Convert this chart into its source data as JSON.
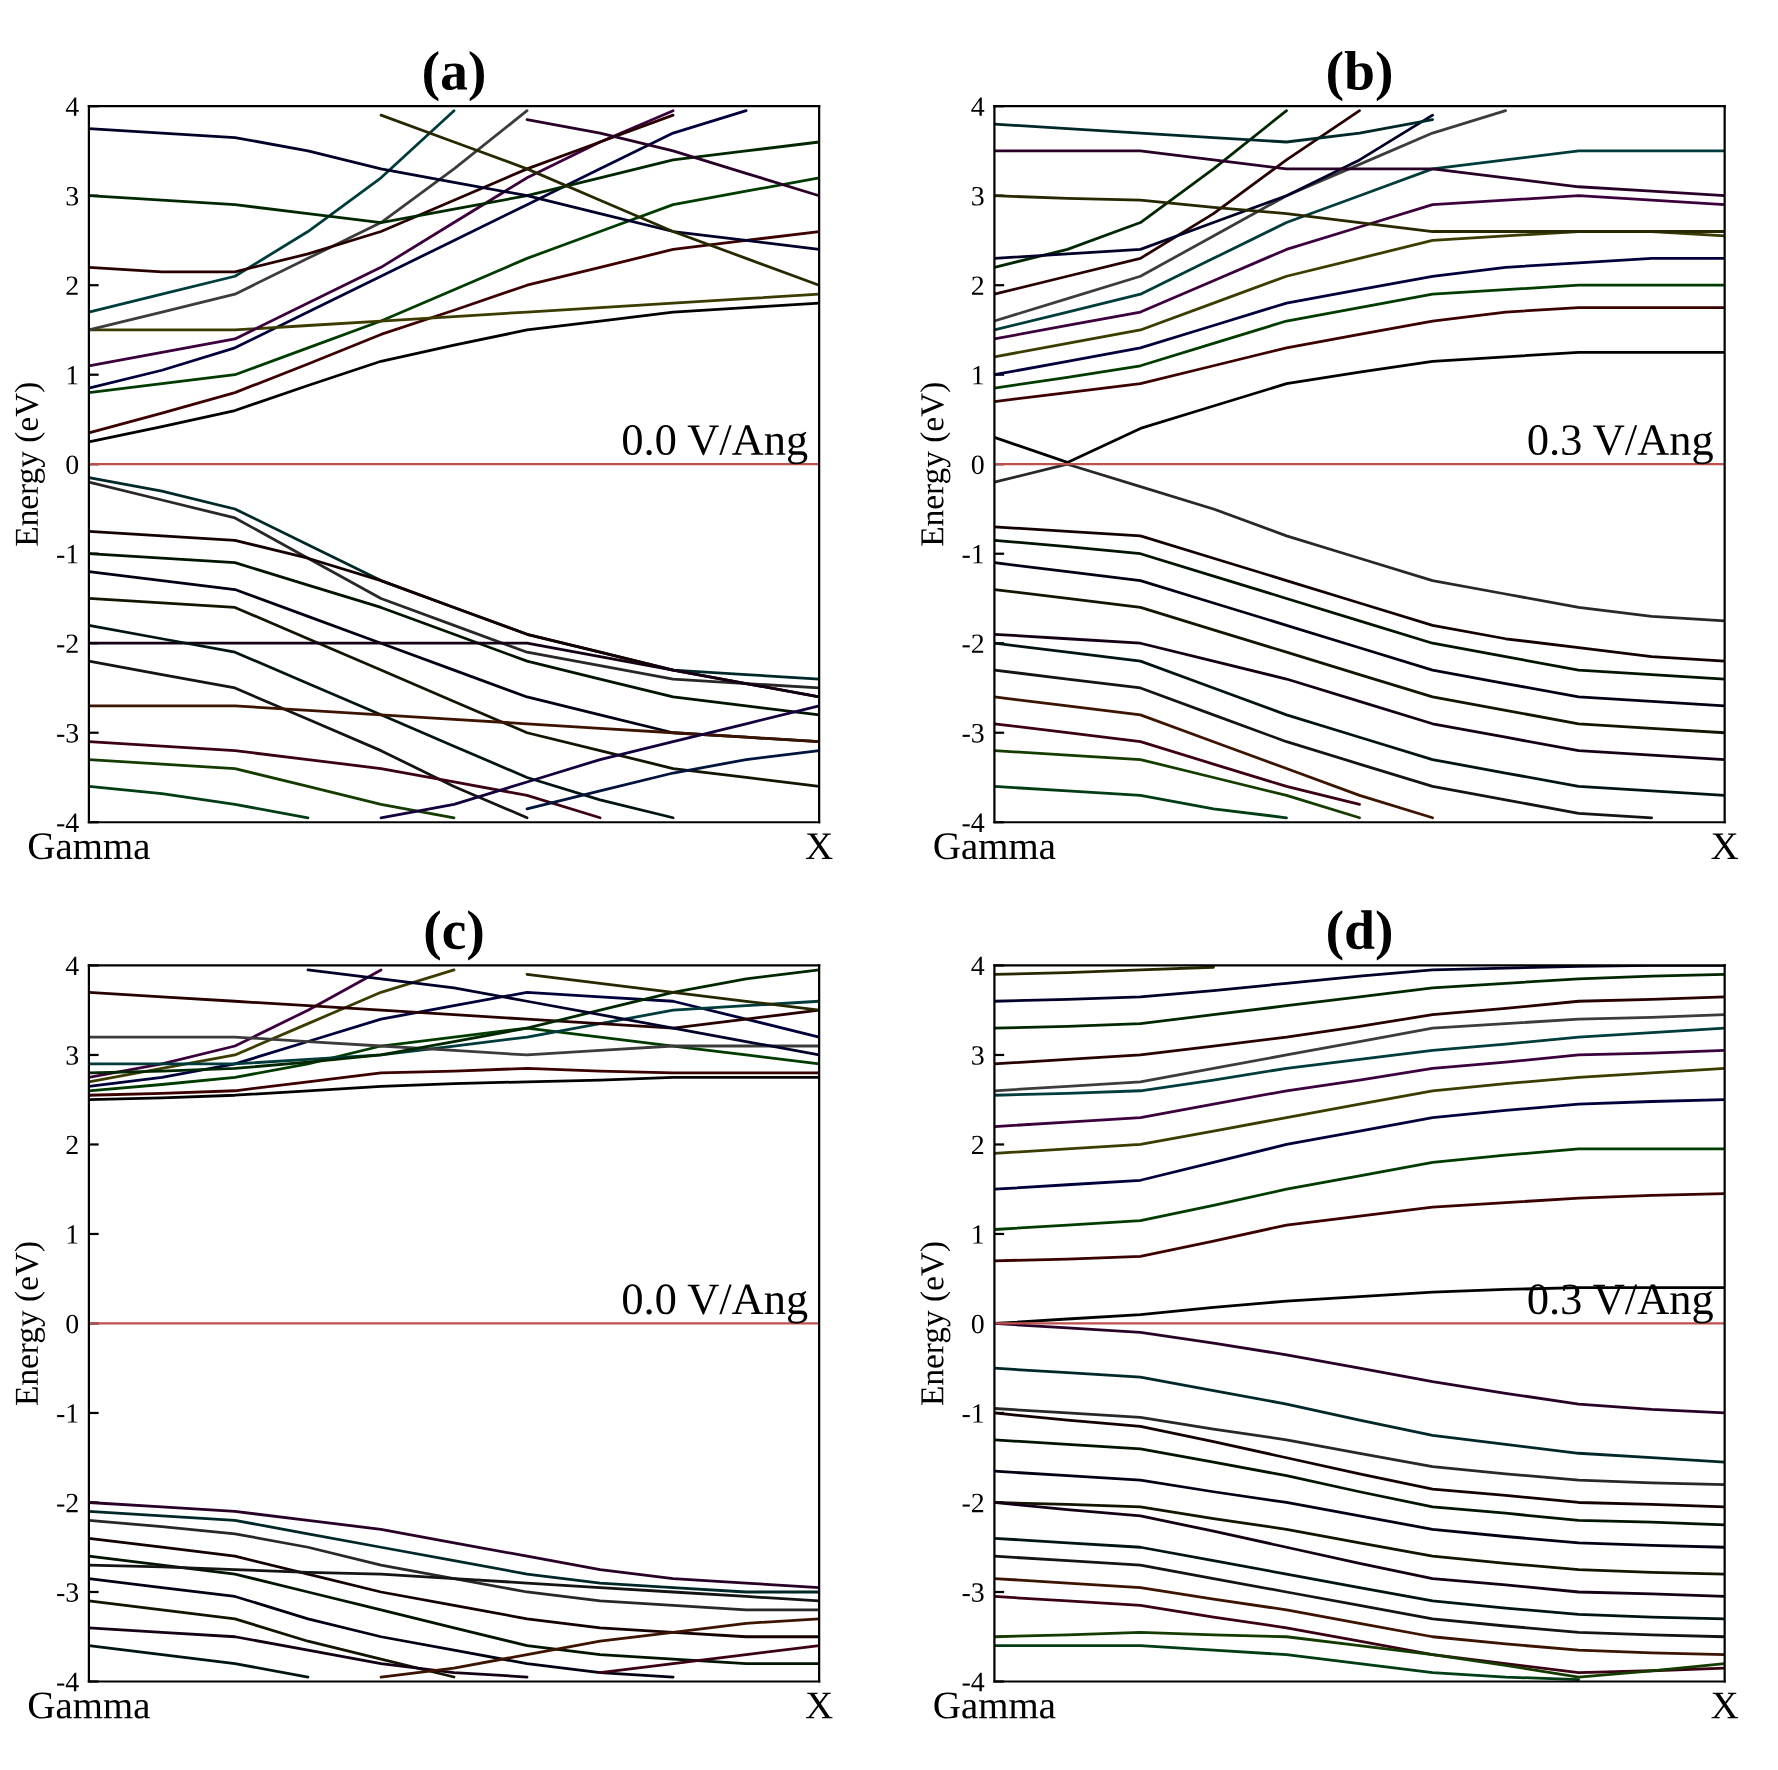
{
  "chart_data": [
    {
      "type": "line",
      "title": "(a)",
      "ylabel": "Energy (eV)",
      "ylim": [
        -4,
        4
      ],
      "yticks": [
        -4,
        -3,
        -2,
        -1,
        0,
        1,
        2,
        3,
        4
      ],
      "grid": false,
      "line_style": "solid",
      "categories": [
        "Gamma",
        null,
        null,
        null,
        null,
        null,
        null,
        null,
        null,
        null,
        "X"
      ],
      "ref_lines": [
        {
          "axis": "y",
          "value": 0,
          "label": "0.0 V/Ang",
          "color": "#c0504d"
        }
      ],
      "series": [
        {
          "color": "#000000",
          "values": [
            0.25,
            0.42,
            0.6,
            0.88,
            1.15,
            1.33,
            1.5,
            1.6,
            1.7,
            1.75,
            1.8
          ]
        },
        {
          "color": "#3c0000",
          "values": [
            0.35,
            0.57,
            0.8,
            1.12,
            1.45,
            1.72,
            2.0,
            2.2,
            2.4,
            2.5,
            2.6
          ]
        },
        {
          "color": "#003c00",
          "values": [
            0.8,
            0.9,
            1.0,
            1.3,
            1.6,
            1.95,
            2.3,
            2.6,
            2.9,
            3.05,
            3.2
          ]
        },
        {
          "color": "#00003c",
          "values": [
            0.85,
            1.05,
            1.3,
            1.7,
            2.1,
            2.5,
            2.9,
            3.3,
            3.7,
            3.95,
            null
          ]
        },
        {
          "color": "#3c3c00",
          "values": [
            1.5,
            1.5,
            1.5,
            1.55,
            1.6,
            1.65,
            1.7,
            1.75,
            1.8,
            1.85,
            1.9
          ]
        },
        {
          "color": "#3c003c",
          "values": [
            1.1,
            1.25,
            1.4,
            1.8,
            2.2,
            2.7,
            3.2,
            3.6,
            3.95,
            null,
            null
          ]
        },
        {
          "color": "#003c3c",
          "values": [
            1.7,
            1.9,
            2.1,
            2.6,
            3.2,
            3.95,
            null,
            null,
            null,
            null,
            null
          ]
        },
        {
          "color": "#3c3c3c",
          "values": [
            1.5,
            1.7,
            1.9,
            2.3,
            2.7,
            3.3,
            3.95,
            null,
            null,
            null,
            null
          ]
        },
        {
          "color": "#280000",
          "values": [
            2.2,
            2.15,
            2.15,
            2.35,
            2.6,
            2.95,
            3.3,
            3.6,
            3.9,
            null,
            null
          ]
        },
        {
          "color": "#002800",
          "values": [
            3.0,
            2.95,
            2.9,
            2.8,
            2.7,
            2.85,
            3.0,
            3.2,
            3.4,
            3.5,
            3.6
          ]
        },
        {
          "color": "#000028",
          "values": [
            3.75,
            3.7,
            3.65,
            3.5,
            3.3,
            3.15,
            3.0,
            2.8,
            2.6,
            2.5,
            2.4
          ]
        },
        {
          "color": "#282800",
          "values": [
            null,
            null,
            null,
            null,
            3.9,
            3.6,
            3.3,
            2.95,
            2.6,
            2.3,
            2.0
          ]
        },
        {
          "color": "#280028",
          "values": [
            null,
            null,
            null,
            null,
            null,
            null,
            3.85,
            3.7,
            3.5,
            3.25,
            3.0
          ]
        },
        {
          "color": "#002828",
          "values": [
            -0.15,
            -0.3,
            -0.5,
            -0.9,
            -1.3,
            -1.6,
            -1.9,
            -2.1,
            -2.3,
            -2.35,
            -2.4
          ]
        },
        {
          "color": "#282828",
          "values": [
            -0.2,
            -0.4,
            -0.6,
            -1.05,
            -1.5,
            -1.8,
            -2.1,
            -2.25,
            -2.4,
            -2.45,
            -2.5
          ]
        },
        {
          "color": "#140000",
          "values": [
            -0.75,
            -0.8,
            -0.85,
            -1.05,
            -1.3,
            -1.6,
            -1.9,
            -2.1,
            -2.3,
            -2.45,
            -2.6
          ]
        },
        {
          "color": "#001400",
          "values": [
            -1.0,
            -1.05,
            -1.1,
            -1.35,
            -1.6,
            -1.9,
            -2.2,
            -2.4,
            -2.6,
            -2.7,
            -2.8
          ]
        },
        {
          "color": "#000014",
          "values": [
            -1.2,
            -1.3,
            -1.4,
            -1.7,
            -2.0,
            -2.3,
            -2.6,
            -2.8,
            -3.0,
            -3.05,
            -3.1
          ]
        },
        {
          "color": "#141400",
          "values": [
            -1.5,
            -1.55,
            -1.6,
            -1.95,
            -2.3,
            -2.65,
            -3.0,
            -3.2,
            -3.4,
            -3.5,
            -3.6
          ]
        },
        {
          "color": "#140014",
          "values": [
            -2.0,
            -2.0,
            -2.0,
            -2.0,
            -2.0,
            -2.0,
            -2.0,
            -2.15,
            -2.3,
            -2.45,
            -2.6
          ]
        },
        {
          "color": "#001414",
          "values": [
            -1.8,
            -1.95,
            -2.1,
            -2.45,
            -2.8,
            -3.15,
            -3.5,
            -3.75,
            -3.95,
            null,
            null
          ]
        },
        {
          "color": "#141414",
          "values": [
            -2.2,
            -2.35,
            -2.5,
            -2.85,
            -3.2,
            -3.6,
            -3.95,
            null,
            null,
            null,
            null
          ]
        },
        {
          "color": "#3c1400",
          "values": [
            -2.7,
            -2.7,
            -2.7,
            -2.75,
            -2.8,
            -2.85,
            -2.9,
            -2.95,
            -3.0,
            -3.05,
            -3.1
          ]
        },
        {
          "color": "#3c0014",
          "values": [
            -3.1,
            -3.15,
            -3.2,
            -3.3,
            -3.4,
            -3.55,
            -3.7,
            -3.95,
            null,
            null,
            null
          ]
        },
        {
          "color": "#143c00",
          "values": [
            -3.3,
            -3.35,
            -3.4,
            -3.6,
            -3.8,
            -3.95,
            null,
            null,
            null,
            null,
            null
          ]
        },
        {
          "color": "#003c14",
          "values": [
            -3.6,
            -3.68,
            -3.8,
            -3.95,
            null,
            null,
            null,
            null,
            null,
            null,
            null
          ]
        },
        {
          "color": "#14003c",
          "values": [
            null,
            null,
            null,
            null,
            -3.95,
            -3.8,
            -3.55,
            -3.3,
            -3.1,
            -2.9,
            -2.7
          ]
        },
        {
          "color": "#00143c",
          "values": [
            null,
            null,
            null,
            null,
            null,
            null,
            -3.85,
            -3.65,
            -3.45,
            -3.3,
            -3.2
          ]
        }
      ]
    },
    {
      "type": "line",
      "title": "(b)",
      "ylabel": "Energy (eV)",
      "ylim": [
        -4,
        4
      ],
      "yticks": [
        -4,
        -3,
        -2,
        -1,
        0,
        1,
        2,
        3,
        4
      ],
      "grid": false,
      "line_style": "solid",
      "categories": [
        "Gamma",
        null,
        null,
        null,
        null,
        null,
        null,
        null,
        null,
        null,
        "X"
      ],
      "ref_lines": [
        {
          "axis": "y",
          "value": 0,
          "label": "0.3 V/Ang",
          "color": "#c0504d"
        }
      ],
      "series": [
        {
          "color": "#000000",
          "values": [
            0.3,
            0.02,
            0.4,
            0.65,
            0.9,
            1.03,
            1.15,
            1.2,
            1.25,
            1.25,
            1.25
          ]
        },
        {
          "color": "#3c0000",
          "values": [
            0.7,
            0.8,
            0.9,
            1.1,
            1.3,
            1.45,
            1.6,
            1.7,
            1.75,
            1.75,
            1.75
          ]
        },
        {
          "color": "#003c00",
          "values": [
            0.85,
            0.97,
            1.1,
            1.35,
            1.6,
            1.75,
            1.9,
            1.95,
            2.0,
            2.0,
            2.0
          ]
        },
        {
          "color": "#00003c",
          "values": [
            1.0,
            1.15,
            1.3,
            1.55,
            1.8,
            1.95,
            2.1,
            2.2,
            2.25,
            2.3,
            2.3
          ]
        },
        {
          "color": "#3c3c00",
          "values": [
            1.2,
            1.35,
            1.5,
            1.8,
            2.1,
            2.3,
            2.5,
            2.55,
            2.6,
            2.6,
            2.55
          ]
        },
        {
          "color": "#3c003c",
          "values": [
            1.4,
            1.55,
            1.7,
            2.05,
            2.4,
            2.65,
            2.9,
            2.95,
            3.0,
            2.95,
            2.9
          ]
        },
        {
          "color": "#003c3c",
          "values": [
            1.5,
            1.7,
            1.9,
            2.3,
            2.7,
            3.0,
            3.3,
            3.4,
            3.5,
            3.5,
            3.5
          ]
        },
        {
          "color": "#3c3c3c",
          "values": [
            1.6,
            1.85,
            2.1,
            2.55,
            3.0,
            3.35,
            3.7,
            3.95,
            null,
            null,
            null
          ]
        },
        {
          "color": "#280000",
          "values": [
            1.9,
            2.1,
            2.3,
            2.8,
            3.4,
            3.95,
            null,
            null,
            null,
            null,
            null
          ]
        },
        {
          "color": "#002800",
          "values": [
            2.2,
            2.4,
            2.7,
            3.3,
            3.95,
            null,
            null,
            null,
            null,
            null,
            null
          ]
        },
        {
          "color": "#000028",
          "values": [
            2.3,
            2.35,
            2.4,
            2.7,
            3.0,
            3.4,
            3.9,
            null,
            null,
            null,
            null
          ]
        },
        {
          "color": "#282800",
          "values": [
            3.0,
            2.97,
            2.95,
            2.87,
            2.8,
            2.7,
            2.6,
            2.6,
            2.6,
            2.6,
            2.6
          ]
        },
        {
          "color": "#280028",
          "values": [
            3.5,
            3.5,
            3.5,
            3.4,
            3.3,
            3.3,
            3.3,
            3.2,
            3.1,
            3.05,
            3.0
          ]
        },
        {
          "color": "#002828",
          "values": [
            3.8,
            3.75,
            3.7,
            3.65,
            3.6,
            3.7,
            3.85,
            null,
            null,
            null,
            null
          ]
        },
        {
          "color": "#282828",
          "values": [
            -0.2,
            0.0,
            -0.25,
            -0.5,
            -0.8,
            -1.05,
            -1.3,
            -1.45,
            -1.6,
            -1.7,
            -1.75
          ]
        },
        {
          "color": "#140000",
          "values": [
            -0.7,
            -0.75,
            -0.8,
            -1.05,
            -1.3,
            -1.55,
            -1.8,
            -1.95,
            -2.05,
            -2.15,
            -2.2
          ]
        },
        {
          "color": "#001400",
          "values": [
            -0.85,
            -0.92,
            -1.0,
            -1.25,
            -1.5,
            -1.75,
            -2.0,
            -2.15,
            -2.3,
            -2.35,
            -2.4
          ]
        },
        {
          "color": "#000014",
          "values": [
            -1.1,
            -1.2,
            -1.3,
            -1.55,
            -1.8,
            -2.05,
            -2.3,
            -2.45,
            -2.6,
            -2.65,
            -2.7
          ]
        },
        {
          "color": "#141400",
          "values": [
            -1.4,
            -1.5,
            -1.6,
            -1.85,
            -2.1,
            -2.35,
            -2.6,
            -2.75,
            -2.9,
            -2.95,
            -3.0
          ]
        },
        {
          "color": "#140014",
          "values": [
            -1.9,
            -1.95,
            -2.0,
            -2.2,
            -2.4,
            -2.65,
            -2.9,
            -3.05,
            -3.2,
            -3.25,
            -3.3
          ]
        },
        {
          "color": "#001414",
          "values": [
            -2.0,
            -2.1,
            -2.2,
            -2.5,
            -2.8,
            -3.05,
            -3.3,
            -3.45,
            -3.6,
            -3.65,
            -3.7
          ]
        },
        {
          "color": "#141414",
          "values": [
            -2.3,
            -2.4,
            -2.5,
            -2.8,
            -3.1,
            -3.35,
            -3.6,
            -3.75,
            -3.9,
            -3.95,
            null
          ]
        },
        {
          "color": "#3c1400",
          "values": [
            -2.6,
            -2.7,
            -2.8,
            -3.1,
            -3.4,
            -3.7,
            -3.95,
            null,
            null,
            null,
            null
          ]
        },
        {
          "color": "#3c0014",
          "values": [
            -2.9,
            -3.0,
            -3.1,
            -3.35,
            -3.6,
            -3.8,
            null,
            null,
            null,
            null,
            null
          ]
        },
        {
          "color": "#143c00",
          "values": [
            -3.2,
            -3.25,
            -3.3,
            -3.5,
            -3.7,
            -3.95,
            null,
            null,
            null,
            null,
            null
          ]
        },
        {
          "color": "#003c14",
          "values": [
            -3.6,
            -3.65,
            -3.7,
            -3.85,
            -3.95,
            null,
            null,
            null,
            null,
            null,
            null
          ]
        }
      ]
    },
    {
      "type": "line",
      "title": "(c)",
      "ylabel": "Energy (eV)",
      "ylim": [
        -4,
        4
      ],
      "yticks": [
        -4,
        -3,
        -2,
        -1,
        0,
        1,
        2,
        3,
        4
      ],
      "grid": false,
      "line_style": "solid",
      "categories": [
        "Gamma",
        null,
        null,
        null,
        null,
        null,
        null,
        null,
        null,
        null,
        "X"
      ],
      "ref_lines": [
        {
          "axis": "y",
          "value": 0,
          "label": "0.0 V/Ang",
          "color": "#c0504d"
        }
      ],
      "series": [
        {
          "color": "#000000",
          "values": [
            2.5,
            2.52,
            2.55,
            2.6,
            2.65,
            2.68,
            2.7,
            2.72,
            2.75,
            2.75,
            2.75
          ]
        },
        {
          "color": "#3c0000",
          "values": [
            2.55,
            2.57,
            2.6,
            2.7,
            2.8,
            2.82,
            2.85,
            2.82,
            2.8,
            2.8,
            2.8
          ]
        },
        {
          "color": "#003c00",
          "values": [
            2.6,
            2.67,
            2.75,
            2.9,
            3.1,
            3.2,
            3.3,
            3.2,
            3.1,
            3.0,
            2.9
          ]
        },
        {
          "color": "#00003c",
          "values": [
            2.65,
            2.75,
            2.9,
            3.15,
            3.4,
            3.55,
            3.7,
            3.65,
            3.6,
            3.4,
            3.2
          ]
        },
        {
          "color": "#3c3c00",
          "values": [
            2.7,
            2.85,
            3.0,
            3.35,
            3.7,
            3.95,
            null,
            null,
            null,
            null,
            null
          ]
        },
        {
          "color": "#3c003c",
          "values": [
            2.75,
            2.9,
            3.1,
            3.5,
            3.95,
            null,
            null,
            null,
            null,
            null,
            null
          ]
        },
        {
          "color": "#003c3c",
          "values": [
            2.9,
            2.9,
            2.9,
            2.95,
            3.0,
            3.1,
            3.2,
            3.35,
            3.5,
            3.55,
            3.6
          ]
        },
        {
          "color": "#3c3c3c",
          "values": [
            3.2,
            3.2,
            3.2,
            3.15,
            3.1,
            3.05,
            3.0,
            3.05,
            3.1,
            3.1,
            3.1
          ]
        },
        {
          "color": "#280000",
          "values": [
            3.7,
            3.65,
            3.6,
            3.55,
            3.5,
            3.45,
            3.4,
            3.35,
            3.3,
            3.4,
            3.5
          ]
        },
        {
          "color": "#002800",
          "values": [
            2.8,
            2.82,
            2.85,
            2.92,
            3.0,
            3.15,
            3.3,
            3.5,
            3.7,
            3.85,
            3.95
          ]
        },
        {
          "color": "#000028",
          "values": [
            null,
            null,
            null,
            3.95,
            3.85,
            3.75,
            3.6,
            3.45,
            3.3,
            3.15,
            3.0
          ]
        },
        {
          "color": "#282800",
          "values": [
            null,
            null,
            null,
            null,
            null,
            null,
            3.9,
            3.8,
            3.7,
            3.6,
            3.5
          ]
        },
        {
          "color": "#280028",
          "values": [
            -2.0,
            -2.05,
            -2.1,
            -2.2,
            -2.3,
            -2.45,
            -2.6,
            -2.75,
            -2.85,
            -2.9,
            -2.95
          ]
        },
        {
          "color": "#002828",
          "values": [
            -2.1,
            -2.15,
            -2.2,
            -2.35,
            -2.5,
            -2.65,
            -2.8,
            -2.9,
            -2.95,
            -3.0,
            -3.0
          ]
        },
        {
          "color": "#282828",
          "values": [
            -2.2,
            -2.27,
            -2.35,
            -2.5,
            -2.7,
            -2.85,
            -3.0,
            -3.1,
            -3.15,
            -3.2,
            -3.2
          ]
        },
        {
          "color": "#140000",
          "values": [
            -2.4,
            -2.5,
            -2.6,
            -2.8,
            -3.0,
            -3.15,
            -3.3,
            -3.4,
            -3.45,
            -3.5,
            -3.5
          ]
        },
        {
          "color": "#001400",
          "values": [
            -2.6,
            -2.7,
            -2.8,
            -3.0,
            -3.2,
            -3.4,
            -3.6,
            -3.7,
            -3.75,
            -3.8,
            -3.8
          ]
        },
        {
          "color": "#000014",
          "values": [
            -2.85,
            -2.95,
            -3.05,
            -3.3,
            -3.5,
            -3.65,
            -3.8,
            -3.9,
            -3.95,
            null,
            null
          ]
        },
        {
          "color": "#141400",
          "values": [
            -3.1,
            -3.2,
            -3.3,
            -3.55,
            -3.75,
            -3.95,
            null,
            null,
            null,
            null,
            null
          ]
        },
        {
          "color": "#140014",
          "values": [
            -3.4,
            -3.45,
            -3.5,
            -3.65,
            -3.8,
            -3.9,
            -3.95,
            null,
            null,
            null,
            null
          ]
        },
        {
          "color": "#001414",
          "values": [
            -3.6,
            -3.7,
            -3.8,
            -3.95,
            null,
            null,
            null,
            null,
            null,
            null,
            null
          ]
        },
        {
          "color": "#141414",
          "values": [
            -2.7,
            -2.72,
            -2.75,
            -2.78,
            -2.8,
            -2.85,
            -2.9,
            -2.95,
            -3.0,
            -3.05,
            -3.1
          ]
        },
        {
          "color": "#3c1400",
          "values": [
            null,
            null,
            null,
            null,
            -3.95,
            -3.85,
            -3.7,
            -3.55,
            -3.45,
            -3.35,
            -3.3
          ]
        },
        {
          "color": "#3c0014",
          "values": [
            null,
            null,
            null,
            null,
            null,
            null,
            null,
            -3.9,
            -3.8,
            -3.7,
            -3.6
          ]
        }
      ]
    },
    {
      "type": "line",
      "title": "(d)",
      "ylabel": "Energy (eV)",
      "ylim": [
        -4,
        4
      ],
      "yticks": [
        -4,
        -3,
        -2,
        -1,
        0,
        1,
        2,
        3,
        4
      ],
      "grid": false,
      "line_style": "solid",
      "categories": [
        "Gamma",
        null,
        null,
        null,
        null,
        null,
        null,
        null,
        null,
        null,
        "X"
      ],
      "ref_lines": [
        {
          "axis": "y",
          "value": 0,
          "label": "0.3 V/Ang",
          "color": "#c0504d"
        }
      ],
      "series": [
        {
          "color": "#000000",
          "values": [
            0.0,
            0.05,
            0.1,
            0.18,
            0.25,
            0.3,
            0.35,
            0.38,
            0.4,
            0.4,
            0.4
          ]
        },
        {
          "color": "#3c0000",
          "values": [
            0.7,
            0.72,
            0.75,
            0.92,
            1.1,
            1.2,
            1.3,
            1.35,
            1.4,
            1.43,
            1.45
          ]
        },
        {
          "color": "#003c00",
          "values": [
            1.05,
            1.1,
            1.15,
            1.32,
            1.5,
            1.65,
            1.8,
            1.88,
            1.95,
            1.95,
            1.95
          ]
        },
        {
          "color": "#00003c",
          "values": [
            1.5,
            1.55,
            1.6,
            1.8,
            2.0,
            2.15,
            2.3,
            2.38,
            2.45,
            2.48,
            2.5
          ]
        },
        {
          "color": "#3c3c00",
          "values": [
            1.9,
            1.95,
            2.0,
            2.15,
            2.3,
            2.45,
            2.6,
            2.68,
            2.75,
            2.8,
            2.85
          ]
        },
        {
          "color": "#3c003c",
          "values": [
            2.2,
            2.25,
            2.3,
            2.45,
            2.6,
            2.72,
            2.85,
            2.92,
            3.0,
            3.02,
            3.05
          ]
        },
        {
          "color": "#003c3c",
          "values": [
            2.55,
            2.57,
            2.6,
            2.72,
            2.85,
            2.95,
            3.05,
            3.12,
            3.2,
            3.25,
            3.3
          ]
        },
        {
          "color": "#3c3c3c",
          "values": [
            2.6,
            2.65,
            2.7,
            2.85,
            3.0,
            3.15,
            3.3,
            3.35,
            3.4,
            3.42,
            3.45
          ]
        },
        {
          "color": "#280000",
          "values": [
            2.9,
            2.95,
            3.0,
            3.1,
            3.2,
            3.32,
            3.45,
            3.52,
            3.6,
            3.62,
            3.65
          ]
        },
        {
          "color": "#002800",
          "values": [
            3.3,
            3.32,
            3.35,
            3.45,
            3.55,
            3.65,
            3.75,
            3.8,
            3.85,
            3.88,
            3.9
          ]
        },
        {
          "color": "#000028",
          "values": [
            3.6,
            3.62,
            3.65,
            3.72,
            3.8,
            3.88,
            3.95,
            3.97,
            3.99,
            4.0,
            4.0
          ]
        },
        {
          "color": "#282800",
          "values": [
            3.9,
            3.92,
            3.95,
            3.98,
            null,
            null,
            null,
            null,
            null,
            null,
            null
          ]
        },
        {
          "color": "#280028",
          "values": [
            0.0,
            -0.05,
            -0.1,
            -0.22,
            -0.35,
            -0.5,
            -0.65,
            -0.78,
            -0.9,
            -0.96,
            -1.0
          ]
        },
        {
          "color": "#002828",
          "values": [
            -0.5,
            -0.55,
            -0.6,
            -0.75,
            -0.9,
            -1.08,
            -1.25,
            -1.35,
            -1.45,
            -1.5,
            -1.55
          ]
        },
        {
          "color": "#282828",
          "values": [
            -0.95,
            -1.0,
            -1.05,
            -1.18,
            -1.3,
            -1.45,
            -1.6,
            -1.68,
            -1.75,
            -1.78,
            -1.8
          ]
        },
        {
          "color": "#140000",
          "values": [
            -1.0,
            -1.08,
            -1.15,
            -1.32,
            -1.5,
            -1.68,
            -1.85,
            -1.92,
            -2.0,
            -2.02,
            -2.05
          ]
        },
        {
          "color": "#001400",
          "values": [
            -1.3,
            -1.35,
            -1.4,
            -1.55,
            -1.7,
            -1.88,
            -2.05,
            -2.12,
            -2.2,
            -2.22,
            -2.25
          ]
        },
        {
          "color": "#000014",
          "values": [
            -1.65,
            -1.7,
            -1.75,
            -1.88,
            -2.0,
            -2.15,
            -2.3,
            -2.38,
            -2.45,
            -2.48,
            -2.5
          ]
        },
        {
          "color": "#141400",
          "values": [
            -2.0,
            -2.02,
            -2.05,
            -2.18,
            -2.3,
            -2.45,
            -2.6,
            -2.68,
            -2.75,
            -2.78,
            -2.8
          ]
        },
        {
          "color": "#140014",
          "values": [
            -2.0,
            -2.08,
            -2.15,
            -2.32,
            -2.5,
            -2.68,
            -2.85,
            -2.92,
            -3.0,
            -3.02,
            -3.05
          ]
        },
        {
          "color": "#001414",
          "values": [
            -2.4,
            -2.45,
            -2.5,
            -2.65,
            -2.8,
            -2.95,
            -3.1,
            -3.18,
            -3.25,
            -3.28,
            -3.3
          ]
        },
        {
          "color": "#141414",
          "values": [
            -2.6,
            -2.65,
            -2.7,
            -2.85,
            -3.0,
            -3.15,
            -3.3,
            -3.38,
            -3.45,
            -3.48,
            -3.5
          ]
        },
        {
          "color": "#3c1400",
          "values": [
            -2.85,
            -2.9,
            -2.95,
            -3.08,
            -3.2,
            -3.35,
            -3.5,
            -3.58,
            -3.65,
            -3.68,
            -3.7
          ]
        },
        {
          "color": "#3c0014",
          "values": [
            -3.05,
            -3.1,
            -3.15,
            -3.28,
            -3.4,
            -3.55,
            -3.7,
            -3.8,
            -3.9,
            -3.88,
            -3.85
          ]
        },
        {
          "color": "#143c00",
          "values": [
            -3.5,
            -3.48,
            -3.45,
            -3.48,
            -3.5,
            -3.6,
            -3.7,
            -3.82,
            -3.95,
            -3.88,
            -3.8
          ]
        },
        {
          "color": "#003c14",
          "values": [
            -3.6,
            -3.6,
            -3.6,
            -3.65,
            -3.7,
            -3.8,
            -3.9,
            -3.95,
            -3.98,
            null,
            null
          ]
        }
      ]
    }
  ]
}
